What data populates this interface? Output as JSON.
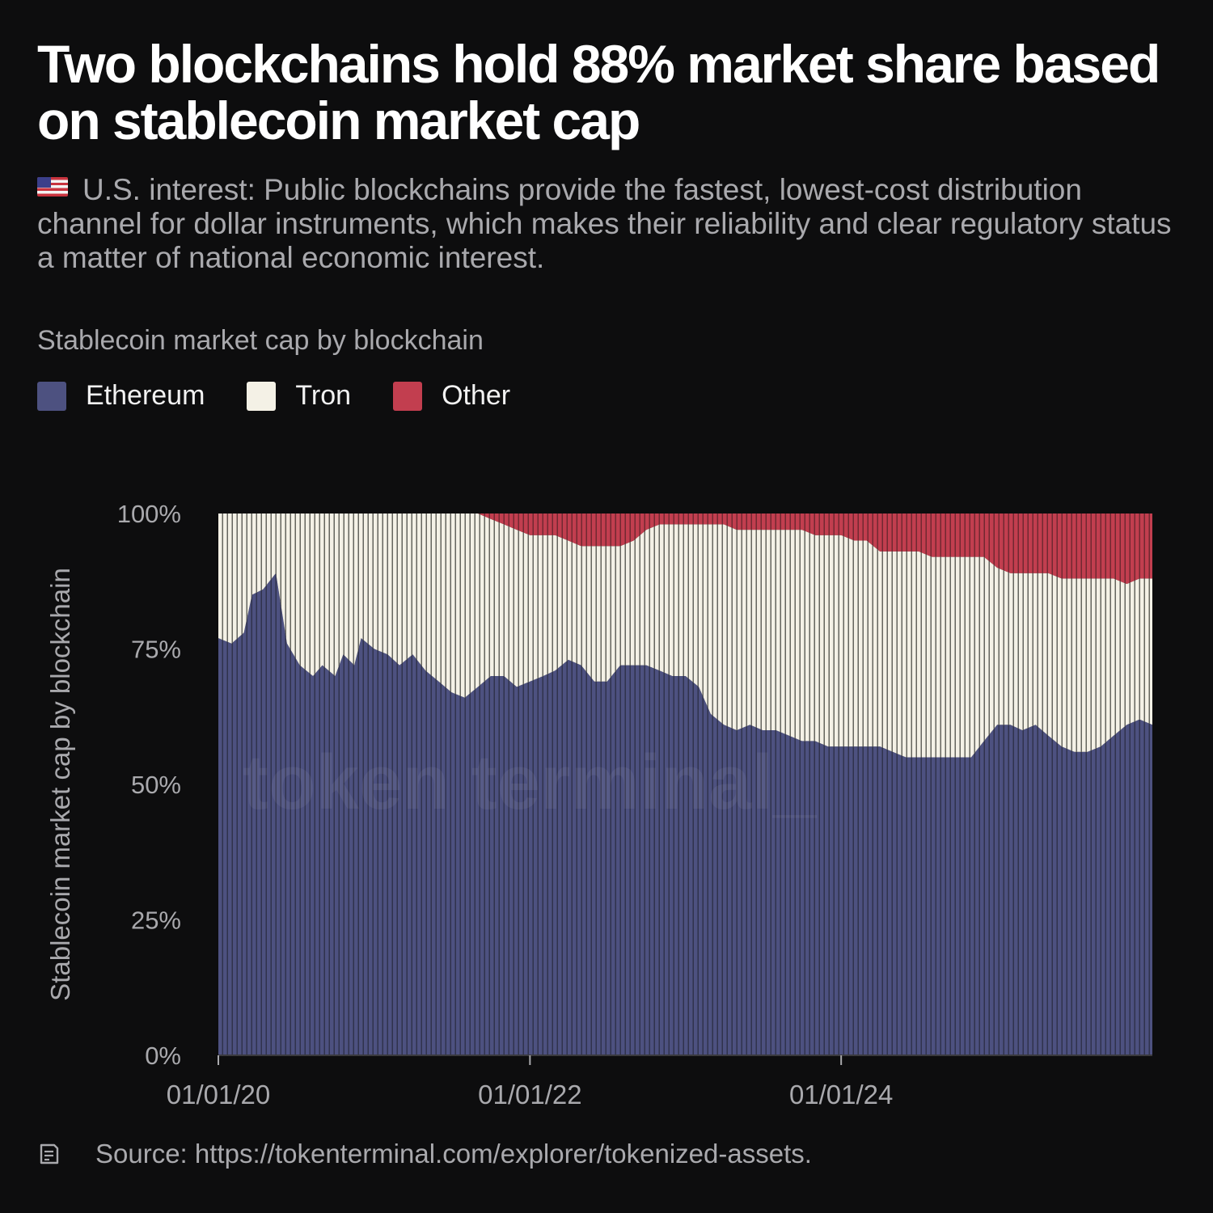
{
  "title": "Two blockchains hold 88% market share based on stablecoin market cap",
  "subtitle": "U.S. interest: Public blockchains provide the fastest, lowest-cost distribution channel for dollar instruments, which makes their reliability and clear regulatory status a matter of national economic interest.",
  "source": "Source: https://tokenterminal.com/explorer/tokenized-assets.",
  "watermark": "token terminal_",
  "colors": {
    "background": "#0d0d0e",
    "ethereum": "#4d5180",
    "tron": "#f4f1e6",
    "other": "#c23e4f",
    "text_muted": "#a9a9ad"
  },
  "icons": {
    "flag": "us-flag-icon",
    "source": "document-icon"
  },
  "chart_data": {
    "type": "area",
    "stacked": true,
    "normalized": true,
    "title": "Stablecoin market cap by blockchain",
    "ylabel": "Stablecoin market cap by blockchain",
    "xlabel": "",
    "x_start": "2020-01-01",
    "x_end": "2025-12-31",
    "x_ticks": [
      "01/01/20",
      "01/01/22",
      "01/01/24"
    ],
    "y_ticks": [
      "0%",
      "25%",
      "50%",
      "75%",
      "100%"
    ],
    "ylim": [
      0,
      100
    ],
    "legend_position": "top-left",
    "series": [
      {
        "name": "Ethereum",
        "color": "#4d5180",
        "points": [
          [
            "2020-01-01",
            77
          ],
          [
            "2020-02-01",
            76
          ],
          [
            "2020-03-01",
            78
          ],
          [
            "2020-03-20",
            85
          ],
          [
            "2020-04-15",
            86
          ],
          [
            "2020-05-15",
            89
          ],
          [
            "2020-06-10",
            76
          ],
          [
            "2020-07-10",
            72
          ],
          [
            "2020-08-10",
            70
          ],
          [
            "2020-09-01",
            72
          ],
          [
            "2020-10-01",
            70
          ],
          [
            "2020-10-20",
            74
          ],
          [
            "2020-11-15",
            72
          ],
          [
            "2020-12-01",
            77
          ],
          [
            "2021-01-01",
            75
          ],
          [
            "2021-02-01",
            74
          ],
          [
            "2021-03-01",
            72
          ],
          [
            "2021-04-01",
            74
          ],
          [
            "2021-05-01",
            71
          ],
          [
            "2021-06-01",
            69
          ],
          [
            "2021-07-01",
            67
          ],
          [
            "2021-08-01",
            66
          ],
          [
            "2021-09-01",
            68
          ],
          [
            "2021-10-01",
            70
          ],
          [
            "2021-11-01",
            70
          ],
          [
            "2021-12-01",
            68
          ],
          [
            "2022-01-01",
            69
          ],
          [
            "2022-02-01",
            70
          ],
          [
            "2022-03-01",
            71
          ],
          [
            "2022-04-01",
            73
          ],
          [
            "2022-05-01",
            72
          ],
          [
            "2022-06-01",
            69
          ],
          [
            "2022-07-01",
            69
          ],
          [
            "2022-08-01",
            72
          ],
          [
            "2022-09-01",
            72
          ],
          [
            "2022-10-01",
            72
          ],
          [
            "2022-11-01",
            71
          ],
          [
            "2022-12-01",
            70
          ],
          [
            "2023-01-01",
            70
          ],
          [
            "2023-02-01",
            68
          ],
          [
            "2023-03-01",
            63
          ],
          [
            "2023-04-01",
            61
          ],
          [
            "2023-05-01",
            60
          ],
          [
            "2023-06-01",
            61
          ],
          [
            "2023-07-01",
            60
          ],
          [
            "2023-08-01",
            60
          ],
          [
            "2023-09-01",
            59
          ],
          [
            "2023-10-01",
            58
          ],
          [
            "2023-11-01",
            58
          ],
          [
            "2023-12-01",
            57
          ],
          [
            "2024-01-01",
            57
          ],
          [
            "2024-02-01",
            57
          ],
          [
            "2024-03-01",
            57
          ],
          [
            "2024-04-01",
            57
          ],
          [
            "2024-05-01",
            56
          ],
          [
            "2024-06-01",
            55
          ],
          [
            "2024-07-01",
            55
          ],
          [
            "2024-08-01",
            55
          ],
          [
            "2024-09-01",
            55
          ],
          [
            "2024-10-01",
            55
          ],
          [
            "2024-11-01",
            55
          ],
          [
            "2024-12-01",
            58
          ],
          [
            "2025-01-01",
            61
          ],
          [
            "2025-02-01",
            61
          ],
          [
            "2025-03-01",
            60
          ],
          [
            "2025-04-01",
            61
          ],
          [
            "2025-05-01",
            59
          ],
          [
            "2025-06-01",
            57
          ],
          [
            "2025-07-01",
            56
          ],
          [
            "2025-08-01",
            56
          ],
          [
            "2025-09-01",
            57
          ],
          [
            "2025-10-01",
            59
          ],
          [
            "2025-11-01",
            61
          ],
          [
            "2025-12-01",
            62
          ],
          [
            "2025-12-31",
            61
          ]
        ]
      },
      {
        "name": "Tron",
        "color": "#f4f1e6",
        "points": [
          [
            "2020-01-01",
            23
          ],
          [
            "2020-02-01",
            24
          ],
          [
            "2020-03-01",
            22
          ],
          [
            "2020-03-20",
            15
          ],
          [
            "2020-04-15",
            14
          ],
          [
            "2020-05-15",
            11
          ],
          [
            "2020-06-10",
            24
          ],
          [
            "2020-07-10",
            28
          ],
          [
            "2020-08-10",
            30
          ],
          [
            "2020-09-01",
            28
          ],
          [
            "2020-10-01",
            30
          ],
          [
            "2020-10-20",
            26
          ],
          [
            "2020-11-15",
            28
          ],
          [
            "2020-12-01",
            23
          ],
          [
            "2021-01-01",
            25
          ],
          [
            "2021-02-01",
            26
          ],
          [
            "2021-03-01",
            28
          ],
          [
            "2021-04-01",
            26
          ],
          [
            "2021-05-01",
            29
          ],
          [
            "2021-06-01",
            31
          ],
          [
            "2021-07-01",
            33
          ],
          [
            "2021-08-01",
            34
          ],
          [
            "2021-09-01",
            32
          ],
          [
            "2021-10-01",
            29
          ],
          [
            "2021-11-01",
            28
          ],
          [
            "2021-12-01",
            29
          ],
          [
            "2022-01-01",
            27
          ],
          [
            "2022-02-01",
            26
          ],
          [
            "2022-03-01",
            25
          ],
          [
            "2022-04-01",
            22
          ],
          [
            "2022-05-01",
            22
          ],
          [
            "2022-06-01",
            25
          ],
          [
            "2022-07-01",
            25
          ],
          [
            "2022-08-01",
            22
          ],
          [
            "2022-09-01",
            23
          ],
          [
            "2022-10-01",
            25
          ],
          [
            "2022-11-01",
            27
          ],
          [
            "2022-12-01",
            28
          ],
          [
            "2023-01-01",
            28
          ],
          [
            "2023-02-01",
            30
          ],
          [
            "2023-03-01",
            35
          ],
          [
            "2023-04-01",
            37
          ],
          [
            "2023-05-01",
            37
          ],
          [
            "2023-06-01",
            36
          ],
          [
            "2023-07-01",
            37
          ],
          [
            "2023-08-01",
            37
          ],
          [
            "2023-09-01",
            38
          ],
          [
            "2023-10-01",
            39
          ],
          [
            "2023-11-01",
            38
          ],
          [
            "2023-12-01",
            39
          ],
          [
            "2024-01-01",
            39
          ],
          [
            "2024-02-01",
            38
          ],
          [
            "2024-03-01",
            38
          ],
          [
            "2024-04-01",
            36
          ],
          [
            "2024-05-01",
            37
          ],
          [
            "2024-06-01",
            38
          ],
          [
            "2024-07-01",
            38
          ],
          [
            "2024-08-01",
            37
          ],
          [
            "2024-09-01",
            37
          ],
          [
            "2024-10-01",
            37
          ],
          [
            "2024-11-01",
            37
          ],
          [
            "2024-12-01",
            34
          ],
          [
            "2025-01-01",
            29
          ],
          [
            "2025-02-01",
            28
          ],
          [
            "2025-03-01",
            29
          ],
          [
            "2025-04-01",
            28
          ],
          [
            "2025-05-01",
            30
          ],
          [
            "2025-06-01",
            31
          ],
          [
            "2025-07-01",
            32
          ],
          [
            "2025-08-01",
            32
          ],
          [
            "2025-09-01",
            31
          ],
          [
            "2025-10-01",
            29
          ],
          [
            "2025-11-01",
            26
          ],
          [
            "2025-12-01",
            26
          ],
          [
            "2025-12-31",
            27
          ]
        ]
      },
      {
        "name": "Other",
        "color": "#c23e4f",
        "points": [
          [
            "2020-01-01",
            0
          ],
          [
            "2020-02-01",
            0
          ],
          [
            "2020-03-01",
            0
          ],
          [
            "2020-03-20",
            0
          ],
          [
            "2020-04-15",
            0
          ],
          [
            "2020-05-15",
            0
          ],
          [
            "2020-06-10",
            0
          ],
          [
            "2020-07-10",
            0
          ],
          [
            "2020-08-10",
            0
          ],
          [
            "2020-09-01",
            0
          ],
          [
            "2020-10-01",
            0
          ],
          [
            "2020-10-20",
            0
          ],
          [
            "2020-11-15",
            0
          ],
          [
            "2020-12-01",
            0
          ],
          [
            "2021-01-01",
            0
          ],
          [
            "2021-02-01",
            0
          ],
          [
            "2021-03-01",
            0
          ],
          [
            "2021-04-01",
            0
          ],
          [
            "2021-05-01",
            0
          ],
          [
            "2021-06-01",
            0
          ],
          [
            "2021-07-01",
            0
          ],
          [
            "2021-08-01",
            0
          ],
          [
            "2021-09-01",
            0
          ],
          [
            "2021-10-01",
            1
          ],
          [
            "2021-11-01",
            2
          ],
          [
            "2021-12-01",
            3
          ],
          [
            "2022-01-01",
            4
          ],
          [
            "2022-02-01",
            4
          ],
          [
            "2022-03-01",
            4
          ],
          [
            "2022-04-01",
            5
          ],
          [
            "2022-05-01",
            6
          ],
          [
            "2022-06-01",
            6
          ],
          [
            "2022-07-01",
            6
          ],
          [
            "2022-08-01",
            6
          ],
          [
            "2022-09-01",
            5
          ],
          [
            "2022-10-01",
            3
          ],
          [
            "2022-11-01",
            2
          ],
          [
            "2022-12-01",
            2
          ],
          [
            "2023-01-01",
            2
          ],
          [
            "2023-02-01",
            2
          ],
          [
            "2023-03-01",
            2
          ],
          [
            "2023-04-01",
            2
          ],
          [
            "2023-05-01",
            3
          ],
          [
            "2023-06-01",
            3
          ],
          [
            "2023-07-01",
            3
          ],
          [
            "2023-08-01",
            3
          ],
          [
            "2023-09-01",
            3
          ],
          [
            "2023-10-01",
            3
          ],
          [
            "2023-11-01",
            4
          ],
          [
            "2023-12-01",
            4
          ],
          [
            "2024-01-01",
            4
          ],
          [
            "2024-02-01",
            5
          ],
          [
            "2024-03-01",
            5
          ],
          [
            "2024-04-01",
            7
          ],
          [
            "2024-05-01",
            7
          ],
          [
            "2024-06-01",
            7
          ],
          [
            "2024-07-01",
            7
          ],
          [
            "2024-08-01",
            8
          ],
          [
            "2024-09-01",
            8
          ],
          [
            "2024-10-01",
            8
          ],
          [
            "2024-11-01",
            8
          ],
          [
            "2024-12-01",
            8
          ],
          [
            "2025-01-01",
            10
          ],
          [
            "2025-02-01",
            11
          ],
          [
            "2025-03-01",
            11
          ],
          [
            "2025-04-01",
            11
          ],
          [
            "2025-05-01",
            11
          ],
          [
            "2025-06-01",
            12
          ],
          [
            "2025-07-01",
            12
          ],
          [
            "2025-08-01",
            12
          ],
          [
            "2025-09-01",
            12
          ],
          [
            "2025-10-01",
            12
          ],
          [
            "2025-11-01",
            13
          ],
          [
            "2025-12-01",
            12
          ],
          [
            "2025-12-31",
            12
          ]
        ]
      }
    ]
  }
}
